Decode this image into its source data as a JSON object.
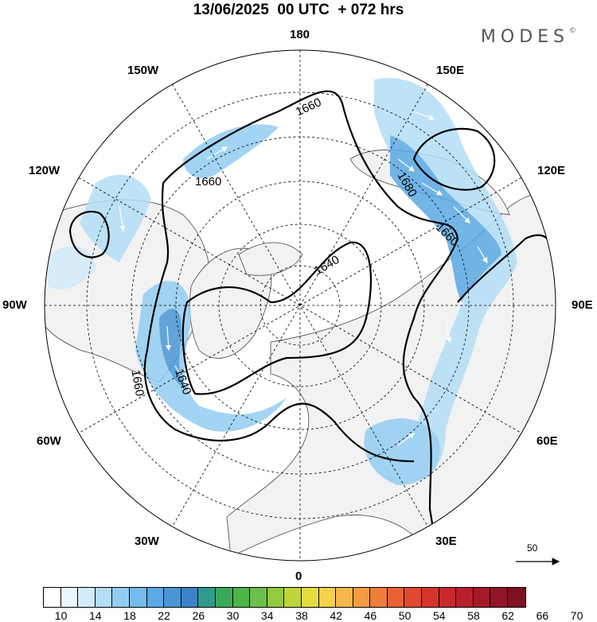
{
  "header": {
    "title": "13/06/2025  00 UTC  + 072 hrs",
    "brand": "MODES",
    "brand_mark": "©"
  },
  "map": {
    "projection": "north-polar-stereographic",
    "longitude_labels": [
      "180",
      "150E",
      "120E",
      "90E",
      "60E",
      "30E",
      "0",
      "30W",
      "60W",
      "90W",
      "120W",
      "150W"
    ],
    "contour_labels": [
      "1660",
      "1660",
      "1680",
      "1660",
      "1640",
      "1640",
      "1660"
    ],
    "contour_color": "#000000",
    "land_color": "#f2f2f2",
    "wind_reference": {
      "value": "50",
      "icon": "reference-arrow-icon"
    }
  },
  "colorbar": {
    "labels": [
      "10",
      "14",
      "18",
      "22",
      "26",
      "30",
      "34",
      "38",
      "42",
      "46",
      "50",
      "54",
      "58",
      "62",
      "66",
      "70"
    ],
    "colors": [
      "#ffffff",
      "#eaf6fd",
      "#d2ecf9",
      "#b3def6",
      "#93cdf1",
      "#74bcec",
      "#5aaae4",
      "#4a96d6",
      "#3c84c8",
      "#2f9a8e",
      "#3aaa5a",
      "#4cb548",
      "#6cc04a",
      "#94c940",
      "#bfd43a",
      "#e3dc3c",
      "#f6d24a",
      "#f7b84a",
      "#f39c43",
      "#ee7f3a",
      "#e86234",
      "#e14a2f",
      "#d6352b",
      "#c8282b",
      "#b81f2c",
      "#a5192b",
      "#921528",
      "#7f1123"
    ]
  }
}
